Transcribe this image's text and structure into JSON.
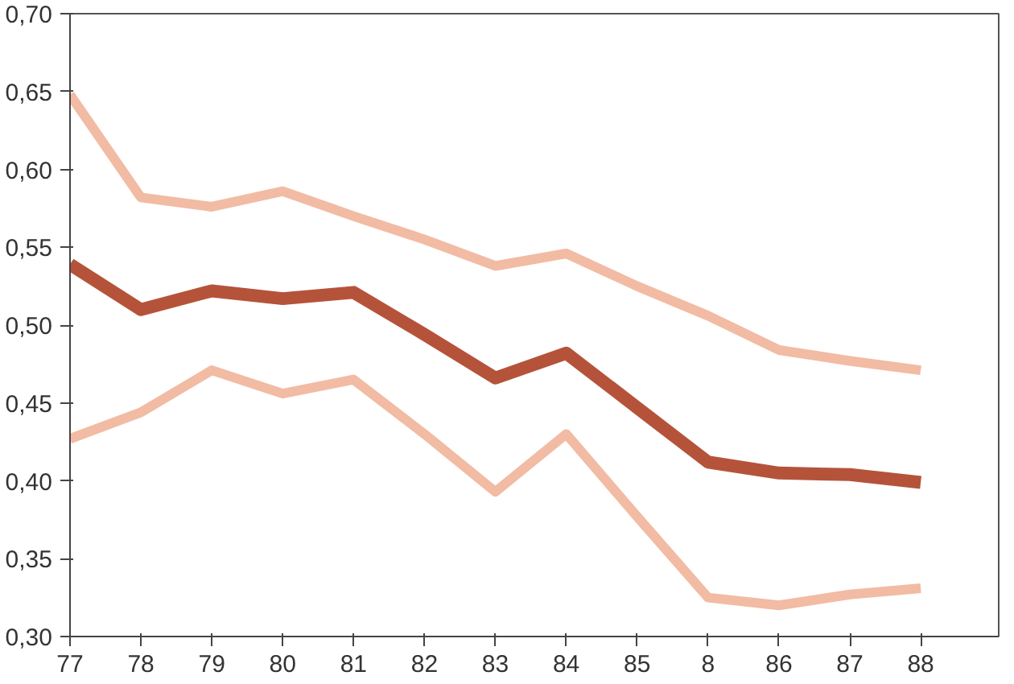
{
  "chart_data": {
    "type": "line",
    "categories": [
      "77",
      "78",
      "79",
      "80",
      "81",
      "82",
      "83",
      "84",
      "85",
      "8",
      "86",
      "87",
      "88"
    ],
    "series": [
      {
        "color": "#f2bba3",
        "values": [
          0.648,
          0.582,
          0.576,
          0.586,
          0.57,
          0.555,
          0.538,
          0.546,
          0.525,
          0.506,
          0.484,
          0.477,
          0.471
        ]
      },
      {
        "color": "#b5533a",
        "values": [
          0.539,
          0.51,
          0.522,
          0.517,
          0.521,
          0.494,
          0.466,
          0.482,
          0.447,
          0.412,
          0.405,
          0.404,
          0.399
        ]
      },
      {
        "color": "#f2bba3",
        "values": [
          0.427,
          0.444,
          0.471,
          0.456,
          0.465,
          0.43,
          0.393,
          0.43,
          0.377,
          0.325,
          0.32,
          0.327,
          0.331
        ]
      }
    ],
    "ylim": [
      0.3,
      0.7
    ],
    "yticks": [
      {
        "value": 0.3,
        "label": "0,30"
      },
      {
        "value": 0.35,
        "label": "0,35"
      },
      {
        "value": 0.4,
        "label": "0,40"
      },
      {
        "value": 0.45,
        "label": "0,45"
      },
      {
        "value": 0.5,
        "label": "0,50"
      },
      {
        "value": 0.55,
        "label": "0,55"
      },
      {
        "value": 0.6,
        "label": "0,60"
      },
      {
        "value": 0.65,
        "label": "0,65"
      },
      {
        "value": 0.7,
        "label": "0,70"
      }
    ],
    "grid": false,
    "marker": "none",
    "line_style": "solid"
  }
}
